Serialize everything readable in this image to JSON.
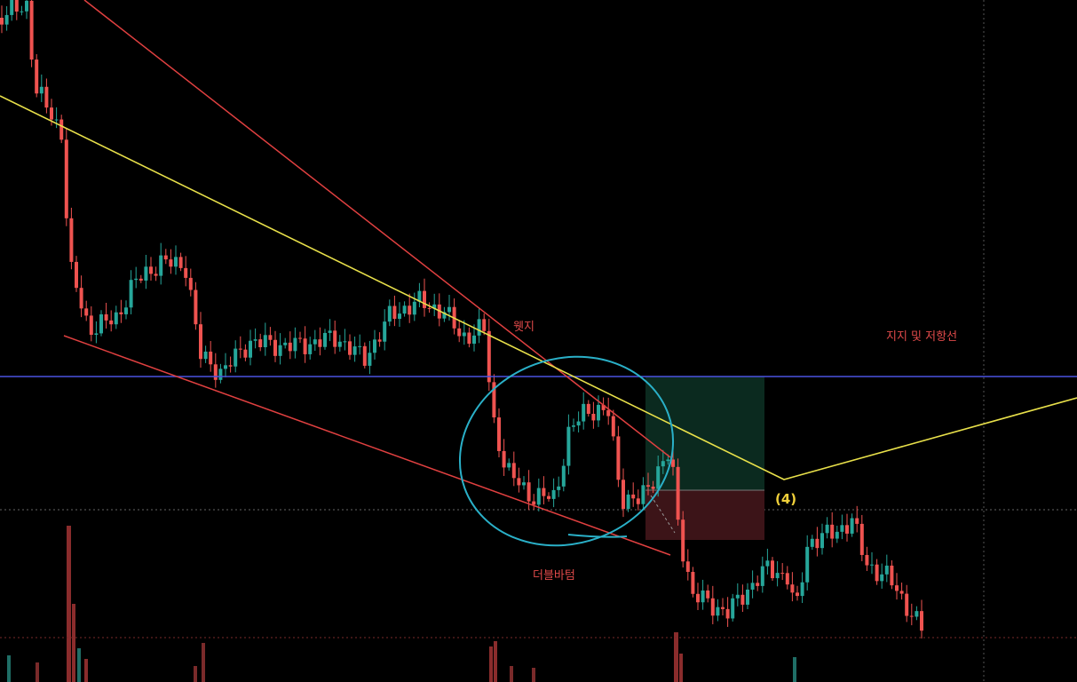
{
  "annotations": {
    "wedge": "웻지",
    "support_resistance": "지지 및 저항선",
    "wave": "(4)",
    "double_bottom": "더블바텀"
  }
}
